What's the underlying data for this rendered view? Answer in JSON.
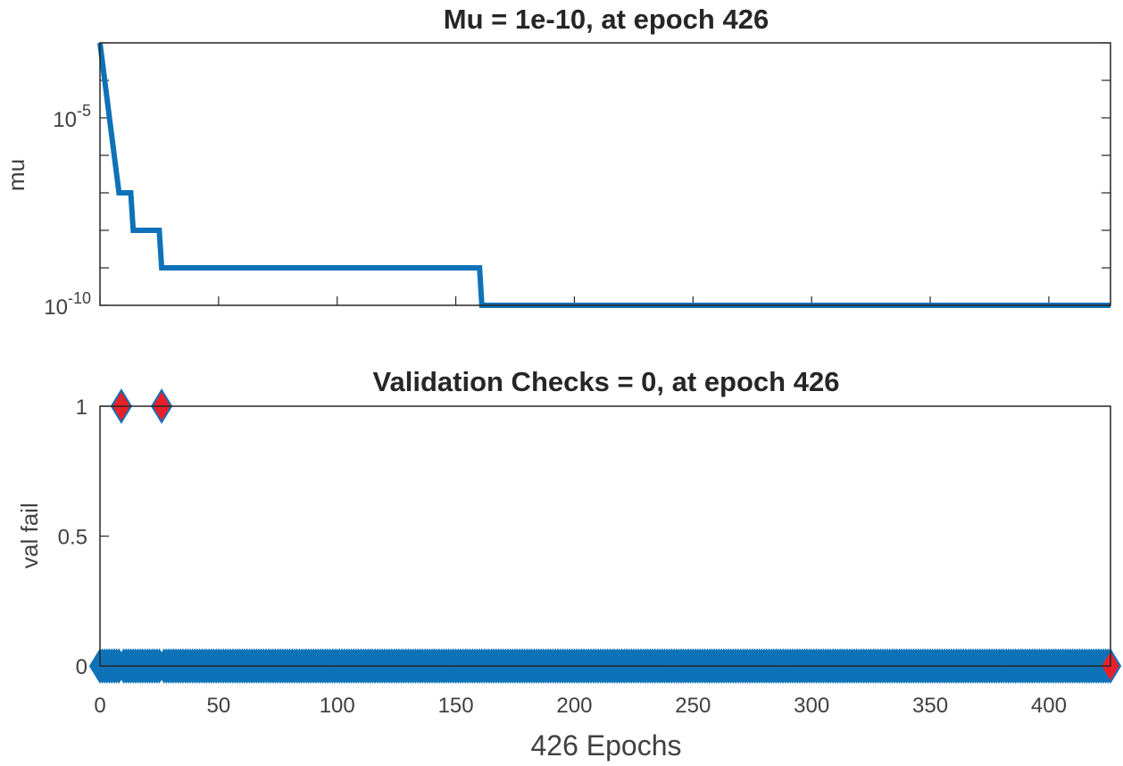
{
  "chart_data": [
    {
      "type": "line",
      "title": "Mu = 1e-10, at epoch 426",
      "xlabel": "",
      "ylabel": "mu",
      "yscale": "log",
      "xlim": [
        0,
        426
      ],
      "ylim": [
        1e-10,
        0.001
      ],
      "yticks": [
        {
          "base": "10",
          "exp": "-5",
          "value": 1e-05
        },
        {
          "base": "10",
          "exp": "-10",
          "value": 1e-10
        }
      ],
      "x": [
        0,
        4,
        8,
        9,
        13,
        14,
        25,
        26,
        160,
        161,
        426
      ],
      "values": [
        0.001,
        1e-05,
        1e-07,
        1e-07,
        1e-07,
        1e-08,
        1e-08,
        1e-09,
        1e-09,
        1e-10,
        1e-10
      ],
      "color": "#0e72b8",
      "grid": false
    },
    {
      "type": "scatter",
      "title": "Validation Checks = 0, at epoch 426",
      "xlabel": "426 Epochs",
      "ylabel": "val fail",
      "xlim": [
        0,
        426
      ],
      "ylim": [
        0,
        1
      ],
      "xticks": [
        0,
        50,
        100,
        150,
        200,
        250,
        300,
        350,
        400
      ],
      "yticks": [
        0,
        0.5,
        1
      ],
      "ytick_labels": [
        "0",
        "0.5",
        "1"
      ],
      "epochs_total": 426,
      "fail_epochs": [
        9,
        26
      ],
      "fail_value": 1,
      "final_epoch": 426,
      "marker_color": "#0e72b8",
      "highlight_color": "#e8202a",
      "grid": false
    }
  ]
}
